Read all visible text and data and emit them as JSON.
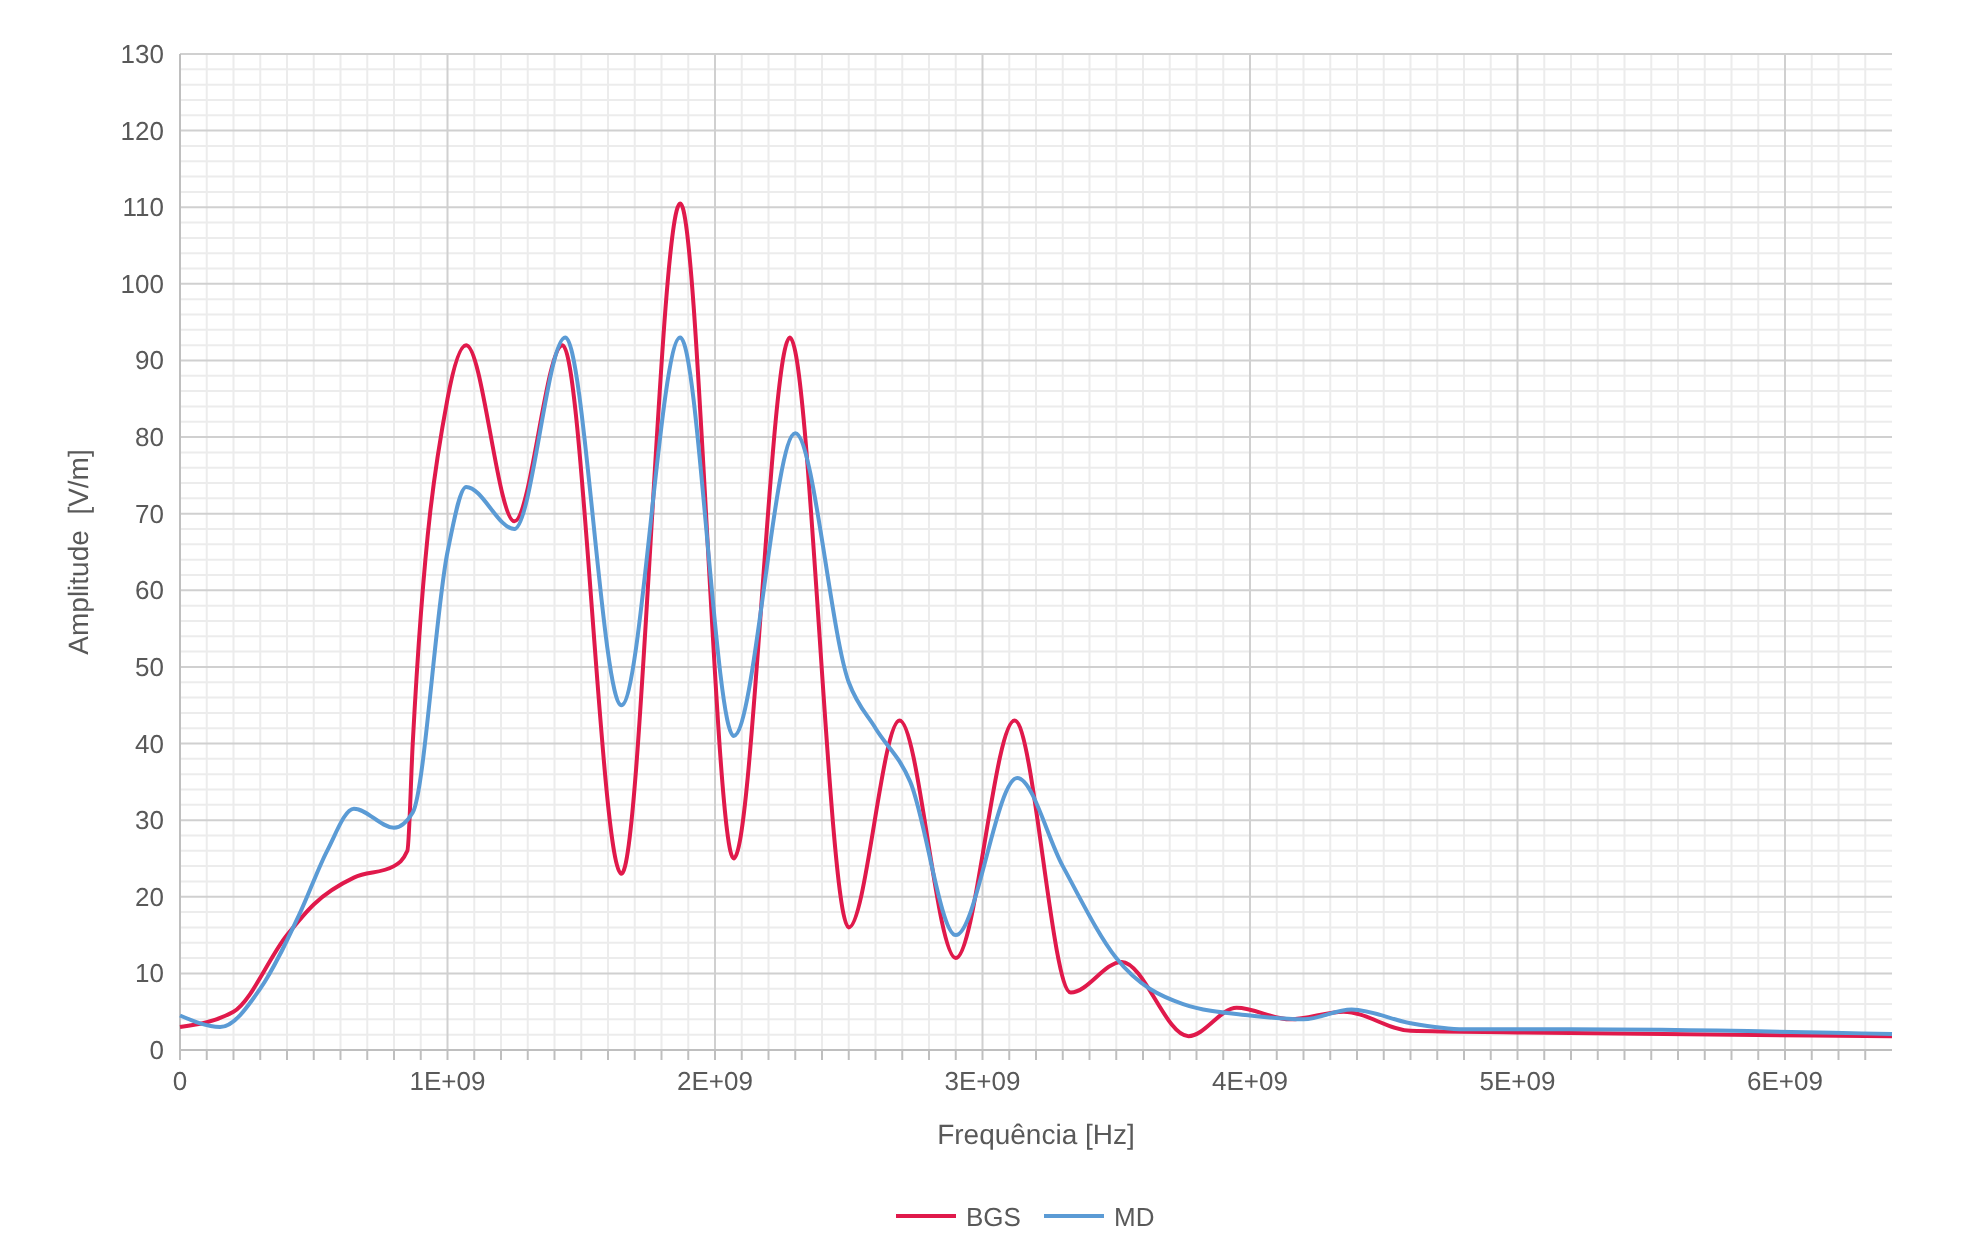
{
  "chart_data": {
    "type": "line",
    "xlabel": "Frequência [Hz]",
    "ylabel": "Amplitude  [V/m]",
    "xlim": [
      0,
      6400000000
    ],
    "ylim": [
      0,
      130
    ],
    "xticks": [
      0,
      {
        "value": 1000000000,
        "label": "1E+09"
      },
      {
        "value": 2000000000,
        "label": "2E+09"
      },
      {
        "value": 3000000000,
        "label": "3E+09"
      },
      {
        "value": 4000000000,
        "label": "4E+09"
      },
      {
        "value": 5000000000,
        "label": "5E+09"
      },
      {
        "value": 6000000000,
        "label": "6E+09"
      }
    ],
    "yticks": [
      0,
      10,
      20,
      30,
      40,
      50,
      60,
      70,
      80,
      90,
      100,
      110,
      120,
      130
    ],
    "grid": true,
    "legend": "bottom",
    "marker": "none",
    "line_style": "solid",
    "series": [
      {
        "name": "BGS",
        "color": "#e0194b",
        "x": [
          0,
          200000000,
          400000000,
          500000000,
          650000000,
          800000000,
          850000000,
          870000000,
          1000000000,
          1070000000,
          1250000000,
          1430000000,
          1650000000,
          1870000000,
          2070000000,
          2280000000,
          2500000000,
          2690000000,
          2900000000,
          3120000000,
          3330000000,
          3520000000,
          3770000000,
          3950000000,
          4150000000,
          4350000000,
          4600000000,
          5000000000,
          6400000000
        ],
        "values": [
          3,
          5,
          15,
          19,
          22.5,
          24,
          26,
          40,
          85,
          92,
          69,
          92,
          23,
          110.5,
          25,
          93,
          16,
          43,
          12,
          43,
          7.5,
          11.5,
          1.8,
          5.5,
          4,
          5,
          2.5,
          2.3,
          1.8
        ]
      },
      {
        "name": "MD",
        "color": "#5b9bd5",
        "x": [
          0,
          150000000,
          300000000,
          450000000,
          550000000,
          650000000,
          800000000,
          870000000,
          1000000000,
          1070000000,
          1250000000,
          1440000000,
          1650000000,
          1870000000,
          2070000000,
          2300000000,
          2500000000,
          2600000000,
          2730000000,
          2900000000,
          3130000000,
          3300000000,
          3500000000,
          3750000000,
          4000000000,
          4200000000,
          4380000000,
          4600000000,
          4800000000,
          5200000000,
          6400000000
        ],
        "values": [
          4.5,
          3,
          8,
          18,
          26,
          31.5,
          29,
          31,
          65,
          73.5,
          68,
          93,
          45,
          93,
          41,
          80.5,
          48,
          42,
          35,
          15,
          35.5,
          24,
          12,
          6,
          4.5,
          4,
          5.3,
          3.5,
          2.7,
          2.7,
          2.1
        ]
      }
    ]
  }
}
